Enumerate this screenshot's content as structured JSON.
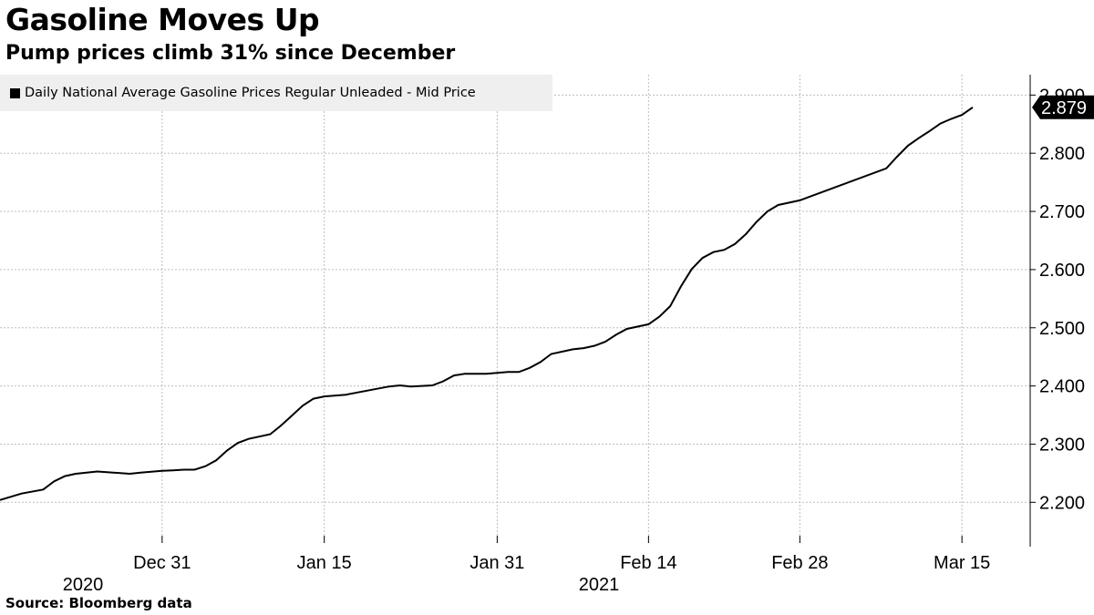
{
  "title": "Gasoline Moves Up",
  "subtitle": "Pump prices climb 31% since December",
  "source": "Source: Bloomberg data",
  "chart_data": {
    "type": "line",
    "title": "Gasoline Moves Up",
    "subtitle": "Pump prices climb 31% since December",
    "x_tick_labels": [
      "Dec 31",
      "Jan 15",
      "Jan 31",
      "Feb 14",
      "Feb 28",
      "Mar 15"
    ],
    "year_labels": [
      "2020",
      "2021"
    ],
    "y_ticks": [
      "2.200",
      "2.300",
      "2.400",
      "2.500",
      "2.600",
      "2.700",
      "2.800",
      "2.900"
    ],
    "ylim": [
      2.13,
      2.935
    ],
    "grid": true,
    "legend_position": "top-left",
    "last_value_label": "2.879",
    "series": [
      {
        "name": "Daily National Average Gasoline Prices Regular Unleaded - Mid Price",
        "color": "#000000",
        "x": [
          "2020-12-16",
          "2020-12-18",
          "2020-12-20",
          "2020-12-21",
          "2020-12-22",
          "2020-12-23",
          "2020-12-25",
          "2020-12-28",
          "2020-12-29",
          "2020-12-31",
          "2021-01-01",
          "2021-01-02",
          "2021-01-03",
          "2021-01-04",
          "2021-01-05",
          "2021-01-06",
          "2021-01-07",
          "2021-01-08",
          "2021-01-10",
          "2021-01-11",
          "2021-01-12",
          "2021-01-13",
          "2021-01-14",
          "2021-01-15",
          "2021-01-17",
          "2021-01-19",
          "2021-01-21",
          "2021-01-22",
          "2021-01-23",
          "2021-01-24",
          "2021-01-25",
          "2021-01-26",
          "2021-01-27",
          "2021-01-28",
          "2021-01-29",
          "2021-01-30",
          "2021-02-01",
          "2021-02-02",
          "2021-02-03",
          "2021-02-04",
          "2021-02-05",
          "2021-02-07",
          "2021-02-08",
          "2021-02-09",
          "2021-02-10",
          "2021-02-11",
          "2021-02-12",
          "2021-02-14",
          "2021-02-15",
          "2021-02-16",
          "2021-02-17",
          "2021-02-18",
          "2021-02-19",
          "2021-02-20",
          "2021-02-21",
          "2021-02-22",
          "2021-02-23",
          "2021-02-24",
          "2021-02-25",
          "2021-02-26",
          "2021-02-28",
          "2021-03-08",
          "2021-03-09",
          "2021-03-10",
          "2021-03-11",
          "2021-03-12",
          "2021-03-13",
          "2021-03-14",
          "2021-03-15",
          "2021-03-16"
        ],
        "values": [
          2.204,
          2.215,
          2.222,
          2.236,
          2.245,
          2.249,
          2.253,
          2.249,
          2.251,
          2.254,
          2.255,
          2.256,
          2.256,
          2.262,
          2.272,
          2.289,
          2.302,
          2.309,
          2.317,
          2.332,
          2.349,
          2.366,
          2.378,
          2.382,
          2.385,
          2.392,
          2.399,
          2.401,
          2.399,
          2.4,
          2.401,
          2.408,
          2.418,
          2.421,
          2.421,
          2.421,
          2.424,
          2.424,
          2.431,
          2.441,
          2.455,
          2.463,
          2.465,
          2.469,
          2.476,
          2.488,
          2.498,
          2.506,
          2.519,
          2.537,
          2.571,
          2.601,
          2.62,
          2.63,
          2.634,
          2.644,
          2.661,
          2.682,
          2.7,
          2.711,
          2.719,
          2.774,
          2.794,
          2.813,
          2.826,
          2.838,
          2.851,
          2.859,
          2.866,
          2.879
        ]
      }
    ]
  }
}
